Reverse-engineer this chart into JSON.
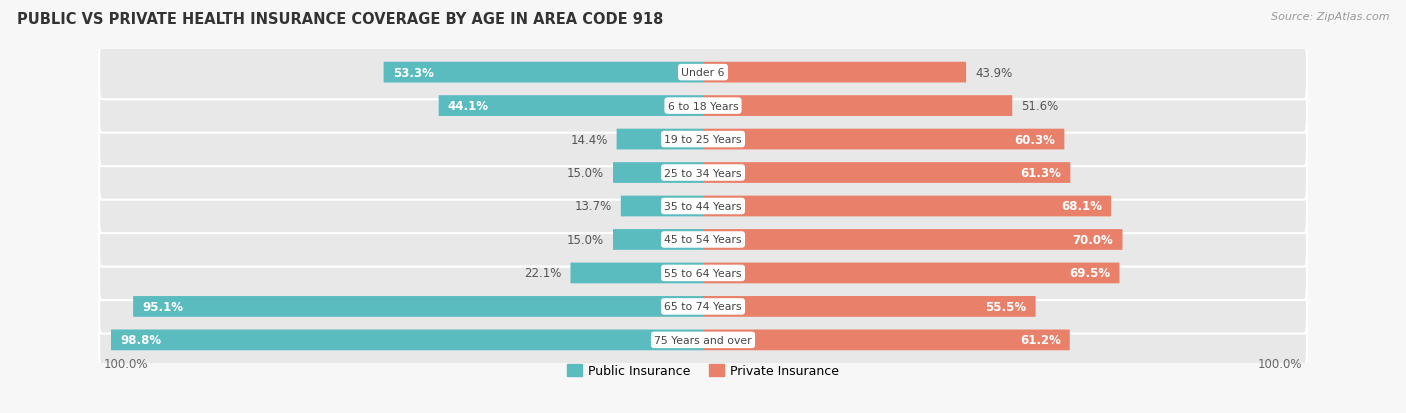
{
  "title": "PUBLIC VS PRIVATE HEALTH INSURANCE COVERAGE BY AGE IN AREA CODE 918",
  "source": "Source: ZipAtlas.com",
  "categories": [
    "Under 6",
    "6 to 18 Years",
    "19 to 25 Years",
    "25 to 34 Years",
    "35 to 44 Years",
    "45 to 54 Years",
    "55 to 64 Years",
    "65 to 74 Years",
    "75 Years and over"
  ],
  "public_values": [
    53.3,
    44.1,
    14.4,
    15.0,
    13.7,
    15.0,
    22.1,
    95.1,
    98.8
  ],
  "private_values": [
    43.9,
    51.6,
    60.3,
    61.3,
    68.1,
    70.0,
    69.5,
    55.5,
    61.2
  ],
  "public_color": "#5bbcbf",
  "private_color": "#e8806a",
  "row_bg_color": "#e8e8e8",
  "label_bg_color": "#ffffff",
  "axis_label_left": "100.0%",
  "axis_label_right": "100.0%",
  "legend_public": "Public Insurance",
  "legend_private": "Private Insurance",
  "max_value": 100,
  "fig_bg": "#f7f7f7"
}
